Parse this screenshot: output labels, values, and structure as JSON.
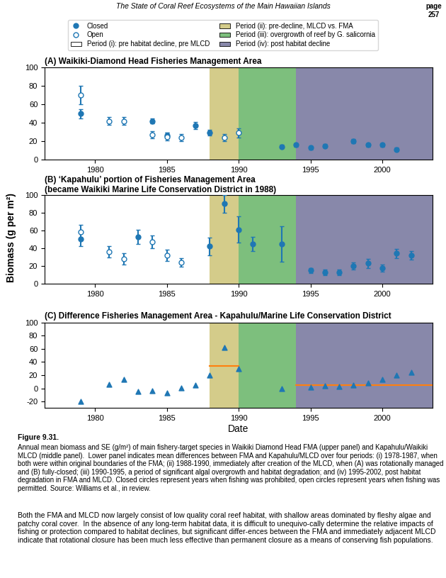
{
  "page_title": "The State of Coral Reef Ecosystems of the Main Hawaiian Islands",
  "page_number": "page\n257",
  "ylabel": "Biomass (g per m²)",
  "legend": "upper center",
  "caption_label": "Figure 9.31.",
  "caption": "Annual mean biomass and SE (g/m²) of main fishery-target species in Waikiki Diamond Head FMA (upper panel) and Kapahulu/Waikiki MLCD (middle panel).  Lower panel indicates mean differences between FMA and Kapahulu/MLCD over four periods: (i) 1978-1987, when both were within original boundaries of the FMA; (ii) 1988-1990, immediately after creation of the MLCD, when (A) was rotationally managed and (B) fully-closed; (iii) 1990-1995, a period of significant algal overgrowth and habitat degradation; and (iv) 1995-2002, post habitat degradation in FMA and MLCD. Closed circles represent years when fishing was prohibited, open circles represent years when fishing was permitted. Source: Williams et al., in review.",
  "body_text": "Both the FMA and MLCD now largely consist of low quality coral reef habitat, with shallow areas dominated by fleshy algae and patchy coral cover.  In the absence of any long-term habitat data, it is difficult to unequivo-cally determine the relative impacts of fishing or protection compared to habitat declines, but significant differ-ences between the FMA and immediately adjacent MLCD indicate that rotational closure has been much less effective than permanent closure as a means of conserving fish populations.",
  "periods": [
    {
      "name": "Period (i): pre habitat decline, pre MLCD",
      "start": 1976.5,
      "end": 1988,
      "color": "#ffffff"
    },
    {
      "name": "Period (ii): pre-decline, MLCD vs. FMA",
      "start": 1988,
      "end": 1990,
      "color": "#d4cc8a"
    },
    {
      "name": "Period (iii): overgrowth of reef by G. salicornia",
      "start": 1990,
      "end": 1994,
      "color": "#7dbf7d"
    },
    {
      "name": "Period (iv): post habitat decline",
      "start": 1994,
      "end": 2003.5,
      "color": "#8888aa"
    }
  ],
  "chart_data": [
    {
      "type": "scatter",
      "title": "(A) Waikiki-Diamond Head Fisheries Management Area",
      "xlim": [
        1976.5,
        2003.5
      ],
      "xticks": [
        1980,
        1985,
        1990,
        1995,
        2000
      ],
      "ylim": [
        0,
        100
      ],
      "yticks": [
        0,
        20,
        40,
        60,
        80,
        100
      ],
      "series": [
        {
          "name": "Closed",
          "marker": "filled_circle",
          "x": [
            1979,
            1984,
            1985,
            1987,
            1988,
            1993,
            1994,
            1995,
            1996,
            1998,
            1999,
            2000,
            2001
          ],
          "values": [
            50,
            42,
            26,
            37,
            29,
            14,
            16,
            13,
            15,
            20,
            16,
            16,
            11
          ],
          "errors": [
            5,
            3,
            3,
            4,
            3,
            2,
            2,
            2,
            2,
            2,
            2,
            2,
            2
          ]
        },
        {
          "name": "Open",
          "marker": "open_circle",
          "x": [
            1979,
            1981,
            1982,
            1984,
            1985,
            1986,
            1989,
            1990
          ],
          "values": [
            70,
            42,
            42,
            27,
            25,
            24,
            24,
            29
          ],
          "errors": [
            10,
            4,
            4,
            4,
            4,
            4,
            4,
            5
          ]
        }
      ]
    },
    {
      "type": "scatter",
      "title": "(B) ‘Kapahulu’ portion of Fisheries Management Area\n(became Waikiki Marine Life Conservation District in 1988)",
      "xlim": [
        1976.5,
        2003.5
      ],
      "xticks": [
        1980,
        1985,
        1990,
        1995,
        2000
      ],
      "ylim": [
        0,
        100
      ],
      "yticks": [
        0,
        20,
        40,
        60,
        80,
        100
      ],
      "series": [
        {
          "name": "Closed",
          "marker": "filled_circle",
          "x": [
            1979,
            1983,
            1988,
            1989,
            1990,
            1991,
            1993,
            1995,
            1996,
            1997,
            1998,
            1999,
            2000,
            2001,
            2002
          ],
          "values": [
            50,
            53,
            42,
            90,
            61,
            45,
            45,
            15,
            13,
            13,
            20,
            23,
            18,
            34,
            32
          ],
          "errors": [
            8,
            8,
            10,
            10,
            15,
            8,
            20,
            3,
            3,
            3,
            4,
            5,
            4,
            5,
            5
          ]
        },
        {
          "name": "Open",
          "marker": "open_circle",
          "x": [
            1979,
            1981,
            1982,
            1984,
            1985,
            1986
          ],
          "values": [
            58,
            36,
            28,
            47,
            32,
            24
          ],
          "errors": [
            8,
            6,
            6,
            7,
            6,
            5
          ]
        }
      ]
    },
    {
      "type": "scatter",
      "title": "(C) Difference Fisheries Management Area - Kapahulu/Marine Life Conservation District",
      "xlabel": "Date",
      "xlim": [
        1976.5,
        2003.5
      ],
      "xticks": [
        1980,
        1985,
        1990,
        1995,
        2000
      ],
      "ylim": [
        -30,
        100
      ],
      "yticks": [
        -20,
        0,
        20,
        40,
        60,
        80,
        100
      ],
      "marker": "triangle",
      "x": [
        1979,
        1981,
        1982,
        1983,
        1984,
        1985,
        1986,
        1987,
        1988,
        1989,
        1990,
        1993,
        1995,
        1996,
        1997,
        1998,
        1999,
        2000,
        2001,
        2002
      ],
      "values": [
        -20,
        6,
        14,
        -5,
        -4,
        -7,
        1,
        5,
        20,
        62,
        30,
        0,
        2,
        4,
        3,
        5,
        8,
        14,
        20,
        24
      ],
      "segments": [
        {
          "x": [
            1988,
            1990
          ],
          "y": 34
        },
        {
          "x": [
            1994,
            2003.5
          ],
          "y": 5
        }
      ]
    }
  ]
}
